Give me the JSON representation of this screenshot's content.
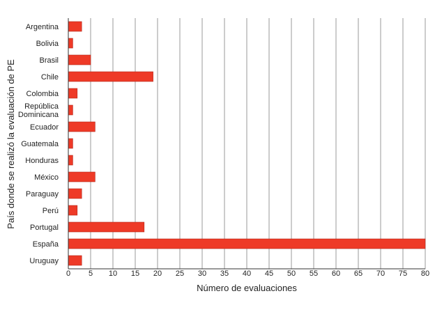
{
  "chart_data": {
    "type": "bar",
    "orientation": "horizontal",
    "categories": [
      "Argentina",
      "Bolivia",
      "Brasil",
      "Chile",
      "Colombia",
      "República Dominicana",
      "Ecuador",
      "Guatemala",
      "Honduras",
      "México",
      "Paraguay",
      "Perú",
      "Portugal",
      "España",
      "Uruguay"
    ],
    "category_lines": [
      [
        "Argentina"
      ],
      [
        "Bolivia"
      ],
      [
        "Brasil"
      ],
      [
        "Chile"
      ],
      [
        "Colombia"
      ],
      [
        "República",
        "Dominicana"
      ],
      [
        "Ecuador"
      ],
      [
        "Guatemala"
      ],
      [
        "Honduras"
      ],
      [
        "México"
      ],
      [
        "Paraguay"
      ],
      [
        "Perú"
      ],
      [
        "Portugal"
      ],
      [
        "España"
      ],
      [
        "Uruguay"
      ]
    ],
    "values": [
      3,
      1,
      5,
      19,
      2,
      1,
      6,
      1,
      1,
      6,
      3,
      2,
      17,
      80,
      3
    ],
    "xlabel": "Número de evaluaciones",
    "ylabel": "País donde se realizó la evaluación de PE",
    "xlim": [
      0,
      80
    ],
    "xticks": [
      0,
      5,
      10,
      15,
      20,
      25,
      30,
      35,
      40,
      45,
      50,
      55,
      60,
      65,
      70,
      75,
      80
    ],
    "grid": "vertical",
    "legend": "none",
    "colors": {
      "bar": "#ee3a27",
      "bar_stroke": "#b3261a",
      "grid": "#999999",
      "axis": "#333333"
    }
  }
}
